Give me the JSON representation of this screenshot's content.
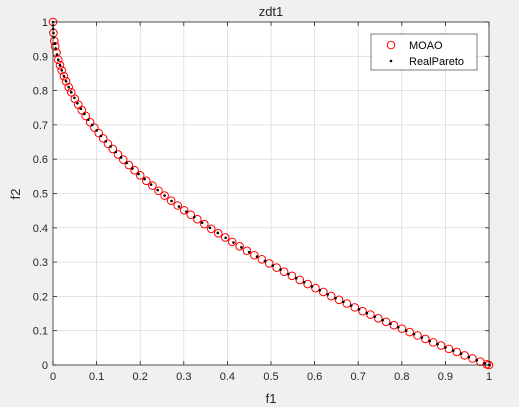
{
  "chart_data": {
    "type": "scatter",
    "title": "zdt1",
    "xlabel": "f1",
    "ylabel": "f2",
    "xlim": [
      0,
      1
    ],
    "ylim": [
      0,
      1
    ],
    "grid": true,
    "legend_position": "top-right",
    "xticks": [
      "0",
      "0.1",
      "0.2",
      "0.3",
      "0.4",
      "0.5",
      "0.6",
      "0.7",
      "0.8",
      "0.9",
      "1"
    ],
    "yticks": [
      "0",
      "0.1",
      "0.2",
      "0.3",
      "0.4",
      "0.5",
      "0.6",
      "0.7",
      "0.8",
      "0.9",
      "1"
    ],
    "series": [
      {
        "name": "MOAO",
        "marker": "open-circle",
        "color": "#ff0000",
        "x": [
          0.0,
          0.001,
          0.003,
          0.005,
          0.008,
          0.012,
          0.016,
          0.02,
          0.025,
          0.03,
          0.036,
          0.042,
          0.05,
          0.058,
          0.066,
          0.075,
          0.085,
          0.095,
          0.105,
          0.115,
          0.126,
          0.137,
          0.149,
          0.161,
          0.174,
          0.187,
          0.2,
          0.214,
          0.228,
          0.242,
          0.256,
          0.271,
          0.286,
          0.301,
          0.316,
          0.331,
          0.347,
          0.363,
          0.379,
          0.395,
          0.411,
          0.428,
          0.445,
          0.462,
          0.479,
          0.496,
          0.513,
          0.53,
          0.548,
          0.566,
          0.584,
          0.602,
          0.62,
          0.638,
          0.656,
          0.674,
          0.692,
          0.71,
          0.728,
          0.746,
          0.764,
          0.782,
          0.8,
          0.818,
          0.836,
          0.854,
          0.872,
          0.89,
          0.908,
          0.926,
          0.944,
          0.962,
          0.98,
          0.995,
          1.0
        ],
        "y": [
          1.0,
          0.968,
          0.945,
          0.929,
          0.911,
          0.89,
          0.874,
          0.859,
          0.842,
          0.827,
          0.81,
          0.795,
          0.776,
          0.759,
          0.743,
          0.726,
          0.708,
          0.692,
          0.676,
          0.661,
          0.645,
          0.63,
          0.614,
          0.599,
          0.583,
          0.568,
          0.553,
          0.537,
          0.523,
          0.508,
          0.494,
          0.479,
          0.465,
          0.451,
          0.438,
          0.425,
          0.411,
          0.397,
          0.384,
          0.372,
          0.359,
          0.346,
          0.333,
          0.32,
          0.308,
          0.296,
          0.284,
          0.272,
          0.26,
          0.248,
          0.236,
          0.224,
          0.213,
          0.201,
          0.19,
          0.179,
          0.168,
          0.157,
          0.147,
          0.136,
          0.126,
          0.116,
          0.106,
          0.096,
          0.086,
          0.076,
          0.066,
          0.057,
          0.047,
          0.038,
          0.028,
          0.019,
          0.01,
          0.002,
          0.0
        ]
      },
      {
        "name": "RealPareto",
        "marker": "dot",
        "color": "#000000",
        "x": [
          0.0,
          0.0001,
          0.0004,
          0.001,
          0.002,
          0.004,
          0.006,
          0.009,
          0.012,
          0.016,
          0.02,
          0.025,
          0.03,
          0.036,
          0.042,
          0.049,
          0.056,
          0.064,
          0.072,
          0.081,
          0.09,
          0.1,
          0.11,
          0.121,
          0.132,
          0.144,
          0.156,
          0.169,
          0.182,
          0.196,
          0.21,
          0.225,
          0.24,
          0.256,
          0.272,
          0.289,
          0.306,
          0.324,
          0.342,
          0.36,
          0.378,
          0.396,
          0.414,
          0.432,
          0.45,
          0.468,
          0.486,
          0.504,
          0.522,
          0.54,
          0.558,
          0.576,
          0.594,
          0.612,
          0.63,
          0.648,
          0.666,
          0.684,
          0.702,
          0.72,
          0.738,
          0.756,
          0.774,
          0.792,
          0.81,
          0.828,
          0.846,
          0.864,
          0.882,
          0.9,
          0.918,
          0.936,
          0.954,
          0.972,
          0.99,
          1.0
        ],
        "y": [
          1.0,
          0.99,
          0.98,
          0.968,
          0.955,
          0.937,
          0.923,
          0.905,
          0.89,
          0.874,
          0.859,
          0.842,
          0.827,
          0.81,
          0.795,
          0.779,
          0.763,
          0.747,
          0.732,
          0.715,
          0.7,
          0.684,
          0.668,
          0.652,
          0.637,
          0.621,
          0.605,
          0.589,
          0.573,
          0.557,
          0.542,
          0.526,
          0.51,
          0.494,
          0.478,
          0.462,
          0.447,
          0.431,
          0.415,
          0.4,
          0.385,
          0.371,
          0.357,
          0.343,
          0.329,
          0.316,
          0.303,
          0.29,
          0.278,
          0.265,
          0.253,
          0.241,
          0.229,
          0.218,
          0.206,
          0.195,
          0.184,
          0.173,
          0.162,
          0.151,
          0.141,
          0.131,
          0.12,
          0.11,
          0.1,
          0.09,
          0.08,
          0.07,
          0.061,
          0.051,
          0.042,
          0.033,
          0.023,
          0.014,
          0.005,
          0.0
        ]
      }
    ]
  }
}
